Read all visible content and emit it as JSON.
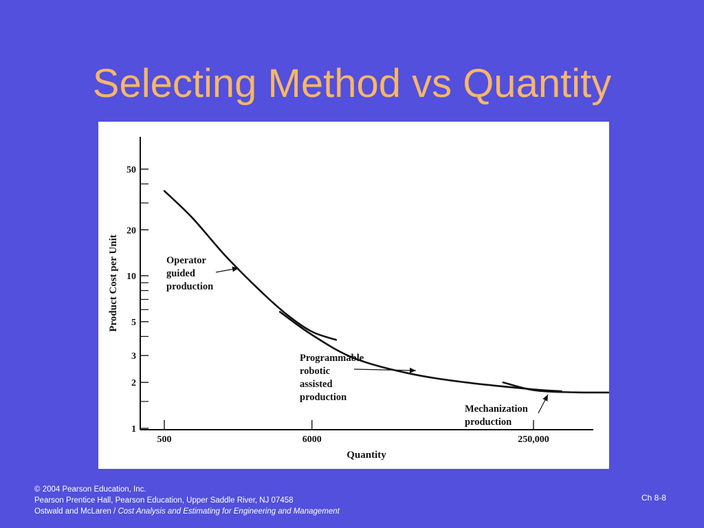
{
  "slide": {
    "title": "Selecting Method vs Quantity",
    "number": "Ch 8-8"
  },
  "footer": {
    "copyright_symbol": "©",
    "line1": "2004 Pearson Education, Inc.",
    "line2": "Pearson Prentice Hall, Pearson Education, Upper Saddle River, NJ 07458",
    "line3_authors": "Ostwald and McLaren / ",
    "line3_book": "Cost Analysis and Estimating for Engineering and Management"
  },
  "chart_data": {
    "type": "line",
    "title": "",
    "xlabel": "Quantity",
    "ylabel": "Product Cost per Unit",
    "y_scale": "log",
    "ylim": [
      1,
      60
    ],
    "y_ticks": [
      1,
      2,
      3,
      5,
      10,
      20,
      50
    ],
    "y_minor_ticks": [
      1.5,
      4,
      6,
      7,
      8,
      9,
      30,
      40
    ],
    "x_scale": "log",
    "x_ticks": [
      500,
      6000,
      250000
    ],
    "x_tick_labels": [
      "500",
      "6000",
      "250,000"
    ],
    "grid": false,
    "series": [
      {
        "name": "Operator guided production",
        "x": [
          500,
          800,
          1400,
          2500,
          4000,
          6000,
          9000
        ],
        "y": [
          36,
          24,
          13.5,
          8.0,
          5.5,
          4.3,
          3.8
        ]
      },
      {
        "name": "Programmable robotic assisted production",
        "x": [
          3500,
          6000,
          12000,
          30000,
          80000,
          250000,
          400000
        ],
        "y": [
          5.8,
          4.1,
          2.9,
          2.3,
          2.0,
          1.8,
          1.75
        ]
      },
      {
        "name": "Mechanization production",
        "x": [
          150000,
          250000,
          500000,
          1300000
        ],
        "y": [
          2.0,
          1.78,
          1.72,
          1.72
        ]
      }
    ],
    "annotations": [
      {
        "lines": [
          "Operator",
          "guided",
          "production"
        ]
      },
      {
        "lines": [
          "Programmable",
          "robotic",
          "assisted",
          "production"
        ]
      },
      {
        "lines": [
          "Mechanization",
          "production"
        ]
      }
    ]
  }
}
